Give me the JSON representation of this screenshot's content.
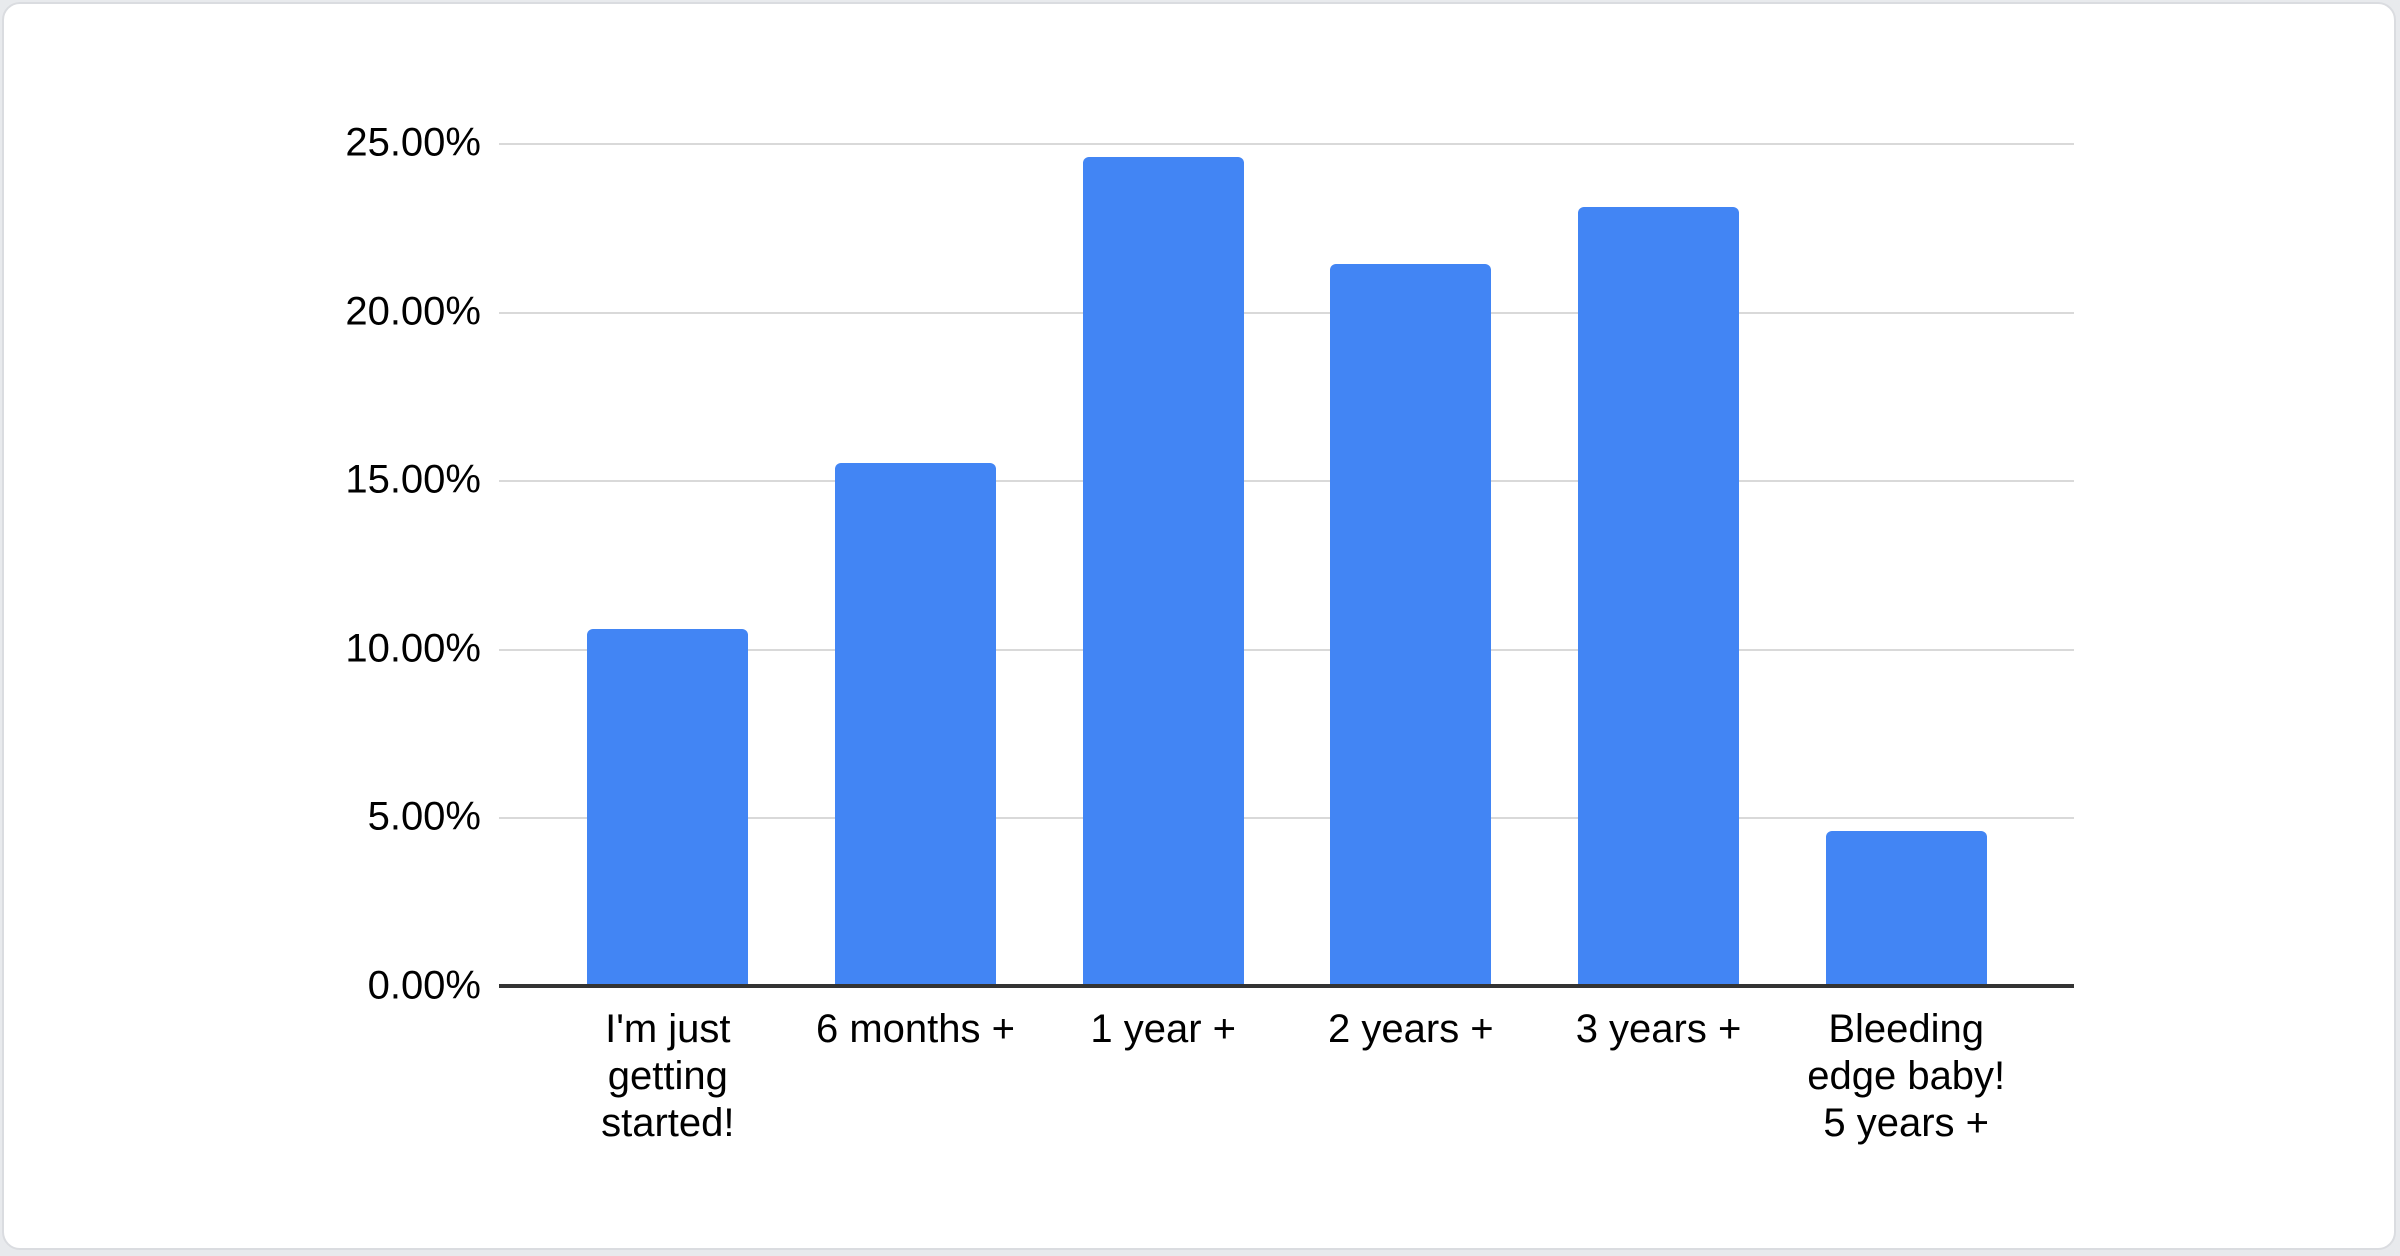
{
  "chart_data": {
    "type": "bar",
    "title": "",
    "xlabel": "",
    "ylabel": "",
    "categories": [
      "I'm just getting started!",
      "6 months +",
      "1 year +",
      "2 years +",
      "3 years +",
      "Bleeding edge baby! 5 years +"
    ],
    "values": [
      10.6,
      15.5,
      24.6,
      21.4,
      23.1,
      4.6
    ],
    "value_unit": "%",
    "ylim": [
      0,
      25
    ],
    "ytick_interval": 5,
    "ytick_format": "0.00%",
    "grid": true,
    "legend_position": "none",
    "bar_color": "#4285f4"
  },
  "yaxis": {
    "labels": [
      "25.00%",
      "20.00%",
      "15.00%",
      "10.00%",
      "5.00%",
      "0.00%"
    ]
  },
  "xaxis": {
    "labels": [
      "I'm just\ngetting\nstarted!",
      "6 months +",
      "1 year +",
      "2 years +",
      "3 years +",
      "Bleeding\nedge baby!\n5 years +"
    ]
  },
  "colors": {
    "bar": "#4285f4",
    "gridline": "#d9d9d9",
    "axis_line": "#333333",
    "text": "#000000",
    "card_background": "#ffffff",
    "card_border": "#dadce0",
    "page_background": "#e8eaed"
  }
}
